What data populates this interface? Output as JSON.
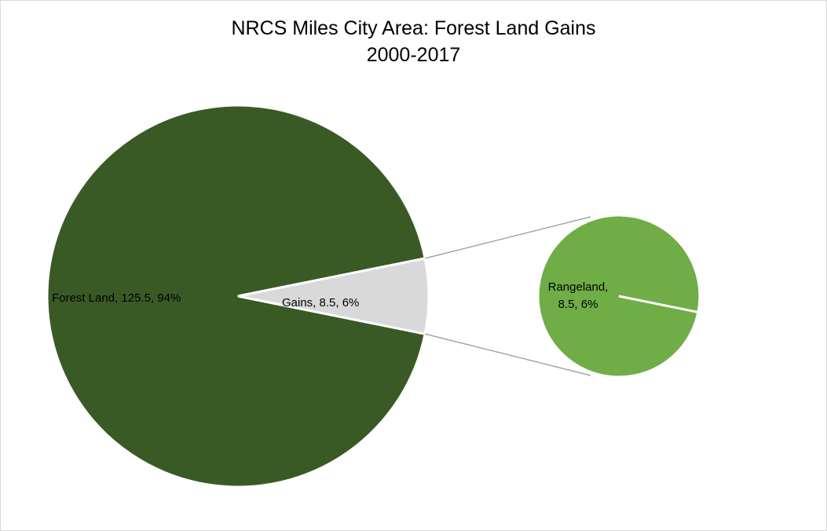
{
  "chart_data": {
    "type": "pie",
    "subtype": "pie-of-pie",
    "title": "NRCS Miles City Area: Forest Land Gains",
    "subtitle": "2000-2017",
    "main_pie": {
      "slices": [
        {
          "name": "Forest Land",
          "value": 125.5,
          "percent": "94%",
          "label": "Forest Land, 125.5, 94%",
          "color": "#3a5a25"
        },
        {
          "name": "Gains",
          "value": 8.5,
          "percent": "6%",
          "label": "Gains, 8.5, 6%",
          "color": "#d9d9d9"
        }
      ]
    },
    "secondary_pie": {
      "slices": [
        {
          "name": "Rangeland",
          "value": 8.5,
          "percent": "6%",
          "label_lines": [
            "Rangeland,",
            "8.5, 6%"
          ],
          "color": "#70ad47"
        }
      ]
    },
    "connector_color": "#a6a6a6"
  }
}
